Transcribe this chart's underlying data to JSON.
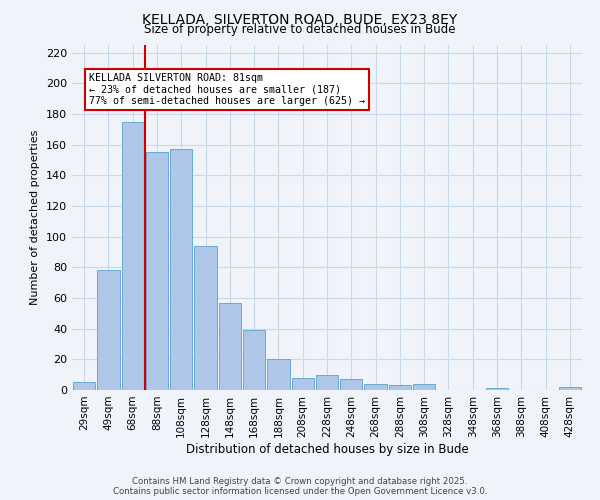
{
  "title": "KELLADA, SILVERTON ROAD, BUDE, EX23 8EY",
  "subtitle": "Size of property relative to detached houses in Bude",
  "xlabel": "Distribution of detached houses by size in Bude",
  "ylabel": "Number of detached properties",
  "bar_labels": [
    "29sqm",
    "49sqm",
    "68sqm",
    "88sqm",
    "108sqm",
    "128sqm",
    "148sqm",
    "168sqm",
    "188sqm",
    "208sqm",
    "228sqm",
    "248sqm",
    "268sqm",
    "288sqm",
    "308sqm",
    "328sqm",
    "348sqm",
    "368sqm",
    "388sqm",
    "408sqm",
    "428sqm"
  ],
  "bar_values": [
    5,
    78,
    175,
    155,
    157,
    94,
    57,
    39,
    20,
    8,
    10,
    7,
    4,
    3,
    4,
    0,
    0,
    1,
    0,
    0,
    2
  ],
  "bar_color": "#aec6e8",
  "bar_edge_color": "#6aaad4",
  "vline_x": 2.5,
  "vline_color": "#cc0000",
  "annotation_title": "KELLADA SILVERTON ROAD: 81sqm",
  "annotation_line1": "← 23% of detached houses are smaller (187)",
  "annotation_line2": "77% of semi-detached houses are larger (625) →",
  "box_edge_color": "#cc0000",
  "ylim": [
    0,
    225
  ],
  "yticks": [
    0,
    20,
    40,
    60,
    80,
    100,
    120,
    140,
    160,
    180,
    200,
    220
  ],
  "footer1": "Contains HM Land Registry data © Crown copyright and database right 2025.",
  "footer2": "Contains public sector information licensed under the Open Government Licence v3.0.",
  "bg_color": "#f0f4fa",
  "grid_color": "#c8d8ec"
}
